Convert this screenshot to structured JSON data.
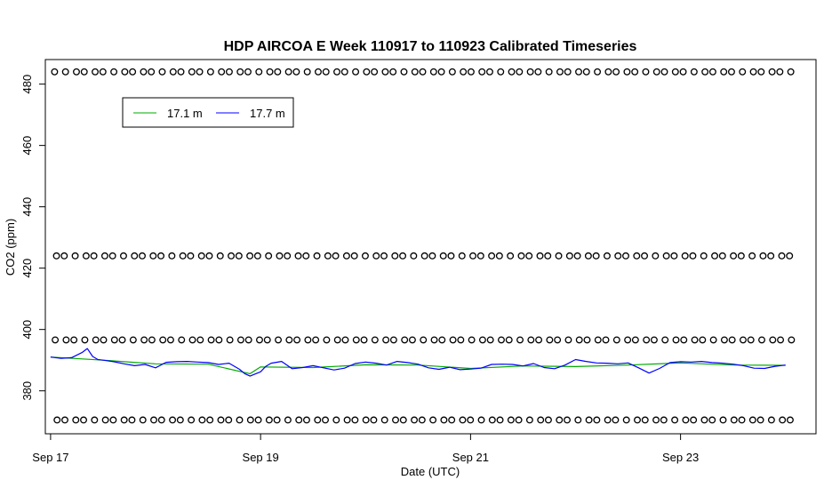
{
  "chart_data": {
    "type": "line",
    "title": "HDP AIRCOA E  Week 110917 to 110923  Calibrated Timeseries",
    "xlabel": "Date (UTC)",
    "ylabel": "CO2 (ppm)",
    "xlim": [
      -0.05,
      7.29
    ],
    "ylim": [
      366.0,
      488.0
    ],
    "x_ticks": [
      {
        "value": 0,
        "label": "Sep 17"
      },
      {
        "value": 2,
        "label": "Sep 19"
      },
      {
        "value": 4,
        "label": "Sep 21"
      },
      {
        "value": 6,
        "label": "Sep 23"
      }
    ],
    "y_ticks": [
      380,
      400,
      420,
      440,
      460,
      480
    ],
    "grid": false,
    "legend": {
      "position": "top-left",
      "entries": [
        {
          "label": "17.1 m",
          "color": "#00aa00"
        },
        {
          "label": "17.7 m",
          "color": "#0000ff"
        }
      ]
    },
    "series": [
      {
        "name": "17.1 m",
        "color": "#00aa00",
        "x": [
          0.0,
          0.5,
          1.0,
          1.5,
          1.9,
          2.0,
          2.5,
          3.0,
          3.5,
          4.0,
          4.5,
          5.0,
          5.5,
          6.0,
          6.5,
          7.0
        ],
        "y": [
          391.0,
          390.0,
          388.8,
          388.7,
          385.6,
          387.8,
          387.6,
          388.5,
          388.4,
          387.3,
          388.1,
          387.9,
          388.4,
          389.1,
          388.4,
          388.3
        ]
      },
      {
        "name": "17.7 m",
        "color": "#0000ff",
        "x": [
          0.0,
          0.1,
          0.2,
          0.3,
          0.35,
          0.4,
          0.45,
          0.5,
          0.6,
          0.7,
          0.8,
          0.9,
          1.0,
          1.1,
          1.2,
          1.3,
          1.4,
          1.5,
          1.6,
          1.7,
          1.8,
          1.85,
          1.9,
          1.95,
          2.0,
          2.05,
          2.1,
          2.2,
          2.3,
          2.4,
          2.5,
          2.6,
          2.7,
          2.8,
          2.9,
          3.0,
          3.1,
          3.2,
          3.3,
          3.4,
          3.5,
          3.6,
          3.7,
          3.8,
          3.9,
          4.0,
          4.1,
          4.2,
          4.3,
          4.4,
          4.5,
          4.6,
          4.7,
          4.8,
          4.9,
          5.0,
          5.1,
          5.2,
          5.3,
          5.4,
          5.5,
          5.6,
          5.7,
          5.8,
          5.9,
          6.0,
          6.1,
          6.2,
          6.3,
          6.4,
          6.5,
          6.6,
          6.7,
          6.8,
          6.9,
          7.0
        ],
        "y": [
          391.0,
          390.6,
          390.8,
          392.5,
          393.8,
          391.2,
          390.2,
          390.0,
          389.5,
          388.8,
          388.2,
          388.6,
          387.5,
          389.3,
          389.5,
          389.6,
          389.4,
          389.2,
          388.6,
          389.0,
          387.0,
          385.6,
          384.8,
          385.5,
          386.2,
          388.0,
          389.0,
          389.6,
          387.2,
          387.6,
          388.2,
          387.5,
          386.8,
          387.4,
          388.9,
          389.4,
          389.0,
          388.4,
          389.6,
          389.2,
          388.7,
          387.5,
          387.0,
          387.7,
          386.9,
          387.1,
          387.4,
          388.6,
          388.7,
          388.6,
          388.1,
          388.9,
          387.6,
          387.2,
          388.4,
          390.2,
          389.6,
          389.1,
          389.0,
          388.8,
          389.1,
          387.5,
          385.8,
          387.3,
          389.2,
          389.5,
          389.4,
          389.6,
          389.2,
          389.0,
          388.7,
          388.2,
          387.4,
          387.3,
          388.0,
          388.4
        ]
      },
      {
        "name": "",
        "type": "scatter",
        "marker": "open-circle",
        "x_range": [
          0.05,
          7.05
        ],
        "count": 77,
        "levels": [
          484.0,
          424.0,
          396.6,
          370.5
        ]
      }
    ]
  }
}
